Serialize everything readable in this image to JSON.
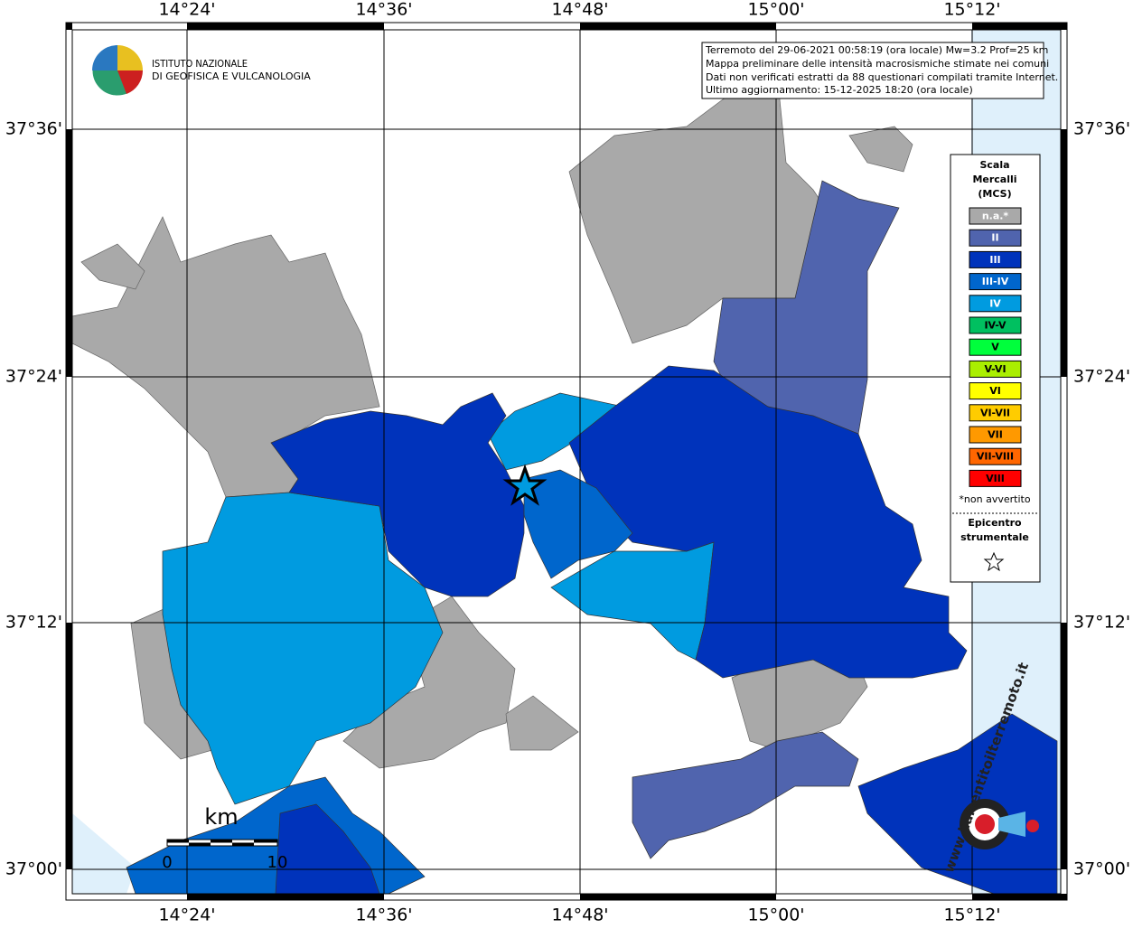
{
  "map": {
    "lon_labels": [
      "14°24'",
      "14°36'",
      "14°48'",
      "15°00'",
      "15°12'"
    ],
    "lat_labels": [
      "37°36'",
      "37°24'",
      "37°12'",
      "37°00'"
    ],
    "logo": {
      "line1": "ISTITUTO NAZIONALE",
      "line2": "DI GEOFISICA E VULCANOLOGIA"
    },
    "info": [
      "Terremoto del 29-06-2021 00:58:19 (ora locale) Mw=3.2 Prof=25 km",
      "Mappa preliminare delle intensità macrosismiche stimate nei comuni",
      "Dati non verificati estratti da 88 questionari compilati tramite Internet.",
      "Ultimo aggiornamento: 15-12-2025 18:20 (ora locale)"
    ],
    "legend": {
      "title": [
        "Scala",
        "Mercalli",
        "(MCS)"
      ],
      "items": [
        {
          "label": "n.a.*",
          "color": "#a9a9a9"
        },
        {
          "label": "II",
          "color": "#5064ae"
        },
        {
          "label": "III",
          "color": "#0033bb"
        },
        {
          "label": "III-IV",
          "color": "#0066cc"
        },
        {
          "label": "IV",
          "color": "#009be0"
        },
        {
          "label": "IV-V",
          "color": "#00c060"
        },
        {
          "label": "V",
          "color": "#00ff3c"
        },
        {
          "label": "V-VI",
          "color": "#aaee00"
        },
        {
          "label": "VI",
          "color": "#ffff00"
        },
        {
          "label": "VI-VII",
          "color": "#ffcc00"
        },
        {
          "label": "VII",
          "color": "#ff9900"
        },
        {
          "label": "VII-VIII",
          "color": "#ff6600"
        },
        {
          "label": "VIII",
          "color": "#ff0000"
        }
      ],
      "note": "*non avvertito",
      "epicenter": [
        "Epicentro",
        "strumentale"
      ]
    },
    "scale": {
      "unit": "km",
      "start": "0",
      "end": "10"
    },
    "watermark": "www.haisentitoilterremoto.it"
  }
}
